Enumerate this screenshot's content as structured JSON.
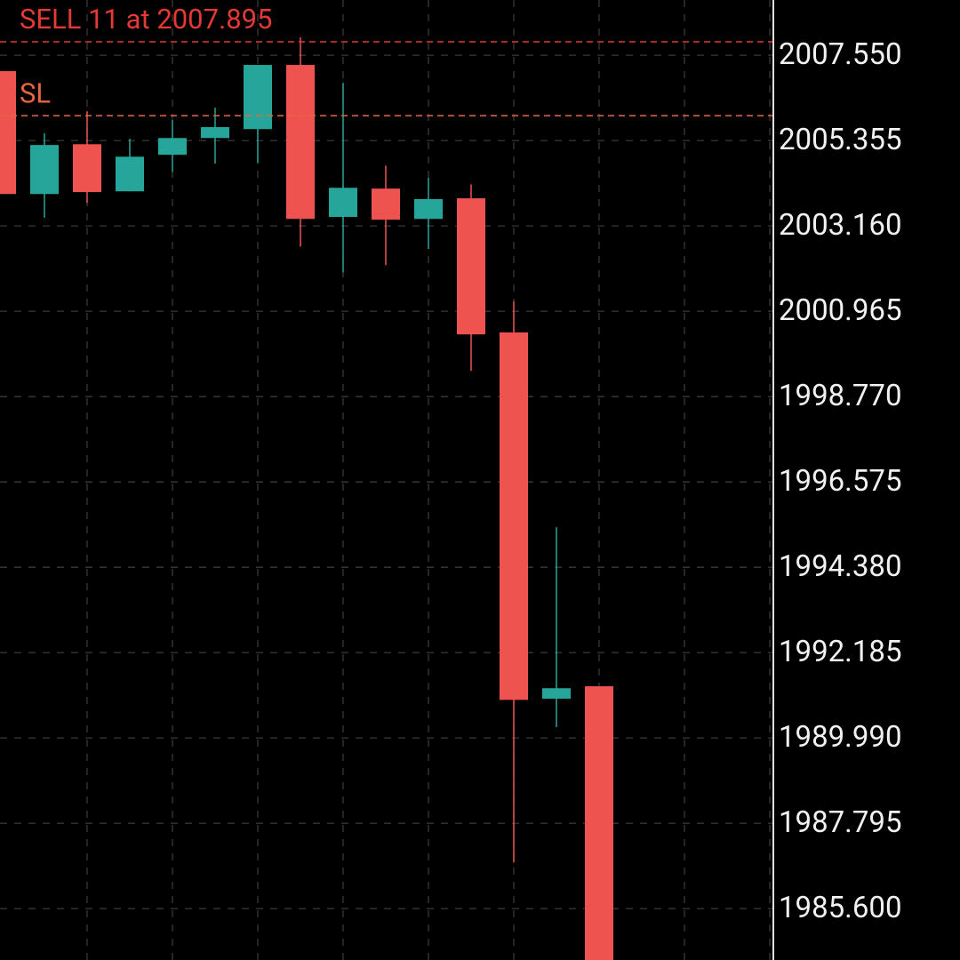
{
  "chart_data": {
    "type": "candlestick",
    "open": [
      2007.14,
      2003.98,
      2005.26,
      2004.05,
      2004.99,
      2005.42,
      2005.65,
      2007.3,
      2003.39,
      2004.12,
      2003.34,
      2003.87,
      2000.42,
      1991.0,
      1991.32
    ],
    "high": [
      2007.14,
      2005.54,
      2006.11,
      2005.4,
      2005.88,
      2006.2,
      2007.3,
      2008.01,
      2006.84,
      2004.71,
      2004.4,
      2004.23,
      2001.22,
      1995.41,
      1991.32
    ],
    "low": [
      2003.98,
      2003.37,
      2003.75,
      2004.05,
      2004.55,
      2004.76,
      2004.78,
      2002.63,
      2001.97,
      2002.15,
      2002.57,
      1999.43,
      1986.79,
      1990.27,
      1984.0
    ],
    "close": [
      2003.98,
      2005.24,
      2004.03,
      2004.94,
      2005.42,
      2005.7,
      2007.3,
      2003.34,
      2004.14,
      2003.32,
      2003.85,
      2000.37,
      1990.97,
      1991.27,
      1984.0
    ],
    "up_color": "#26a69a",
    "down_color": "#ef5350",
    "ylim": [
      1984.28,
      2008.97
    ],
    "yticks": [
      {
        "value": 2007.55,
        "label": "2007.550"
      },
      2005.355,
      {
        "value": 2003.16,
        "label": "2003.160"
      },
      2000.965,
      {
        "value": 1998.77,
        "label": "1998.770"
      },
      1996.575,
      {
        "value": 1994.38,
        "label": "1994.380"
      },
      1992.185,
      {
        "value": 1989.99,
        "label": "1989.990"
      },
      1987.795,
      {
        "value": 1985.6,
        "label": "1985.600"
      }
    ],
    "grid": true,
    "lines": [
      {
        "label": "SELL 11 at 2007.895",
        "value": 2007.895,
        "color": "#e53935"
      },
      {
        "label": "SL",
        "value": 2005.995,
        "color": "#e8663d"
      }
    ]
  }
}
